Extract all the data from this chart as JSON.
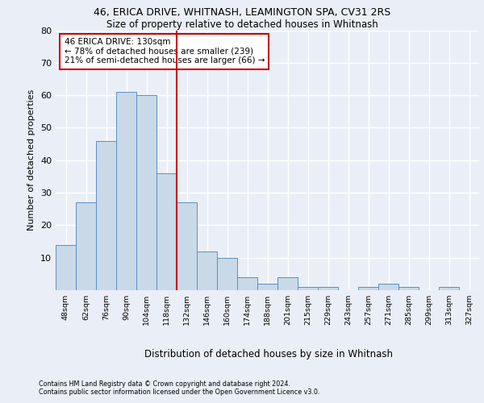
{
  "title_line1": "46, ERICA DRIVE, WHITNASH, LEAMINGTON SPA, CV31 2RS",
  "title_line2": "Size of property relative to detached houses in Whitnash",
  "xlabel": "Distribution of detached houses by size in Whitnash",
  "ylabel": "Number of detached properties",
  "bin_labels": [
    "48sqm",
    "62sqm",
    "76sqm",
    "90sqm",
    "104sqm",
    "118sqm",
    "132sqm",
    "146sqm",
    "160sqm",
    "174sqm",
    "188sqm",
    "201sqm",
    "215sqm",
    "229sqm",
    "243sqm",
    "257sqm",
    "271sqm",
    "285sqm",
    "299sqm",
    "313sqm",
    "327sqm"
  ],
  "bar_heights": [
    14,
    27,
    46,
    61,
    60,
    36,
    27,
    12,
    10,
    4,
    2,
    4,
    1,
    1,
    0,
    1,
    2,
    1,
    0,
    1,
    0
  ],
  "bar_color": "#c9d9e8",
  "bar_edge_color": "#5a8fc0",
  "property_line_x": 5.5,
  "annotation_title": "46 ERICA DRIVE: 130sqm",
  "annotation_line1": "← 78% of detached houses are smaller (239)",
  "annotation_line2": "21% of semi-detached houses are larger (66) →",
  "annotation_box_color": "#ffffff",
  "annotation_box_edge_color": "#cc0000",
  "ylim": [
    0,
    80
  ],
  "yticks": [
    0,
    10,
    20,
    30,
    40,
    50,
    60,
    70,
    80
  ],
  "background_color": "#eaeff7",
  "grid_color": "#ffffff",
  "footer_line1": "Contains HM Land Registry data © Crown copyright and database right 2024.",
  "footer_line2": "Contains public sector information licensed under the Open Government Licence v3.0."
}
